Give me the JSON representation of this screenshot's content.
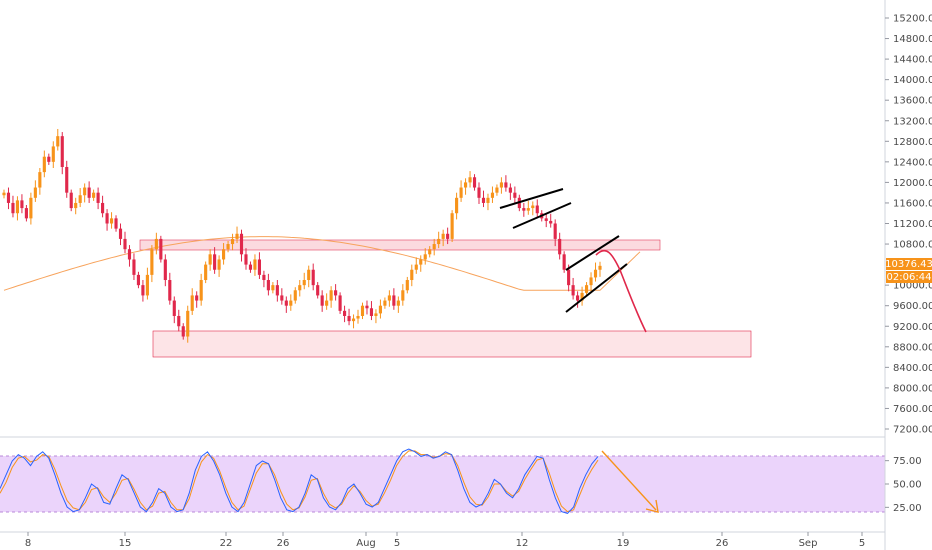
{
  "chart_data": [
    {
      "type": "candlestick",
      "y_axis_ticks": [
        "15200.00",
        "14800.00",
        "14400.00",
        "14000.00",
        "13600.00",
        "13200.00",
        "12800.00",
        "12400.00",
        "12000.00",
        "11600.00",
        "11200.00",
        "10800.00",
        "10000.00",
        "9600.00",
        "9200.00",
        "8800.00",
        "8400.00",
        "8000.00",
        "7600.00",
        "7200.00"
      ],
      "ylim": [
        7000,
        15600
      ],
      "x_axis_ticks": [
        "8",
        "15",
        "22",
        "26",
        "Aug",
        "5",
        "12",
        "19",
        "26",
        "Sep",
        "5"
      ],
      "last_price": "10376.43",
      "countdown": "02:06:44",
      "colors": {
        "up": "#f7931a",
        "down": "#e0284b",
        "ma": "#f7a35c",
        "zone": "#f8c9cf",
        "arrow": "#e0284b"
      },
      "closes": [
        11800,
        11600,
        11400,
        11650,
        11500,
        11300,
        11700,
        11900,
        12200,
        12500,
        12400,
        12700,
        12900,
        12300,
        11800,
        11500,
        11600,
        11750,
        11900,
        11700,
        11800,
        11600,
        11400,
        11200,
        11300,
        11100,
        10900,
        10700,
        10500,
        10200,
        10000,
        9800,
        10200,
        10700,
        10900,
        10500,
        10100,
        9700,
        9400,
        9200,
        9000,
        9500,
        9800,
        9700,
        10100,
        10400,
        10600,
        10300,
        10500,
        10700,
        10800,
        10900,
        11000,
        10600,
        10400,
        10300,
        10500,
        10200,
        10100,
        9900,
        10000,
        9800,
        9700,
        9600,
        9700,
        9900,
        10000,
        10100,
        10300,
        10000,
        9800,
        9600,
        9700,
        9900,
        9800,
        9500,
        9400,
        9300,
        9350,
        9400,
        9600,
        9550,
        9400,
        9450,
        9600,
        9700,
        9800,
        9600,
        9700,
        9900,
        10100,
        10300,
        10400,
        10500,
        10600,
        10700,
        10800,
        10900,
        11000,
        10900,
        11400,
        11700,
        11900,
        12000,
        12100,
        11900,
        11700,
        11600,
        11700,
        11800,
        11900,
        12000,
        11900,
        11800,
        11700,
        11500,
        11450,
        11500,
        11550,
        11400,
        11300,
        11250,
        11200,
        10900,
        10600,
        10300,
        10000,
        9800,
        9700,
        9850,
        10000,
        10150,
        10300,
        10376
      ],
      "stoch_ticks": [
        "75.00",
        "50.00",
        "25.00"
      ],
      "stoch_ylim": [
        0,
        100
      ],
      "stoch_band": [
        20,
        80
      ],
      "stoch_k": [
        45,
        60,
        75,
        82,
        78,
        70,
        80,
        85,
        78,
        60,
        40,
        25,
        20,
        22,
        35,
        50,
        45,
        30,
        28,
        45,
        60,
        55,
        40,
        25,
        20,
        30,
        45,
        40,
        25,
        20,
        22,
        40,
        65,
        80,
        85,
        75,
        60,
        40,
        25,
        20,
        30,
        50,
        70,
        75,
        72,
        55,
        35,
        22,
        20,
        25,
        40,
        60,
        55,
        35,
        25,
        22,
        30,
        45,
        50,
        40,
        28,
        25,
        30,
        45,
        60,
        75,
        85,
        88,
        85,
        80,
        82,
        78,
        80,
        85,
        82,
        65,
        45,
        30,
        25,
        28,
        40,
        55,
        50,
        40,
        35,
        45,
        60,
        70,
        80,
        78,
        55,
        35,
        20,
        18,
        25,
        45,
        60,
        72,
        80
      ],
      "stoch_d": [
        40,
        52,
        68,
        78,
        80,
        74,
        76,
        82,
        80,
        66,
        48,
        32,
        24,
        22,
        30,
        44,
        46,
        36,
        30,
        40,
        54,
        56,
        44,
        30,
        22,
        26,
        40,
        42,
        30,
        22,
        22,
        34,
        56,
        74,
        82,
        78,
        64,
        46,
        30,
        22,
        26,
        44,
        62,
        72,
        72,
        60,
        42,
        28,
        22,
        24,
        36,
        54,
        56,
        40,
        28,
        24,
        28,
        40,
        48,
        42,
        32,
        26,
        28,
        40,
        54,
        70,
        80,
        86,
        86,
        82,
        82,
        79,
        80,
        83,
        82,
        70,
        52,
        36,
        28,
        27,
        36,
        50,
        50,
        42,
        37,
        42,
        55,
        66,
        76,
        78,
        62,
        42,
        26,
        20,
        22,
        38,
        54,
        66,
        76
      ]
    }
  ]
}
